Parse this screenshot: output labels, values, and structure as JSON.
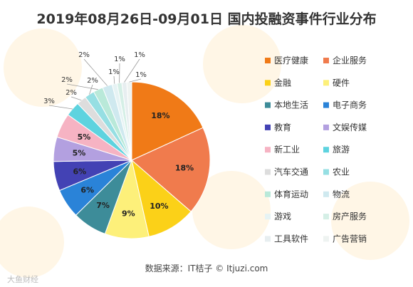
{
  "chart_data": {
    "type": "pie",
    "title": "2019年08月26日-09月01日 国内投融资事件行业分布",
    "slices": [
      {
        "label": "医疗健康",
        "value": 18,
        "display": "18%",
        "color": "#f07a17"
      },
      {
        "label": "企业服务",
        "value": 18,
        "display": "18%",
        "color": "#f07b4d"
      },
      {
        "label": "金融",
        "value": 10,
        "display": "10%",
        "color": "#fbd118"
      },
      {
        "label": "硬件",
        "value": 9,
        "display": "9%",
        "color": "#fdf07a"
      },
      {
        "label": "本地生活",
        "value": 7,
        "display": "7%",
        "color": "#3d8c99"
      },
      {
        "label": "电子商务",
        "value": 6,
        "display": "6%",
        "color": "#2a83d8"
      },
      {
        "label": "教育",
        "value": 6,
        "display": "6%",
        "color": "#4342b4"
      },
      {
        "label": "文娱传媒",
        "value": 5,
        "display": "5%",
        "color": "#b3a0e0"
      },
      {
        "label": "新工业",
        "value": 5,
        "display": "5%",
        "color": "#f6b3c3"
      },
      {
        "label": "旅游",
        "value": 3,
        "display": "3%",
        "color": "#5ed3df"
      },
      {
        "label": "汽车交通",
        "value": 2,
        "display": "2%",
        "color": "#dddddd"
      },
      {
        "label": "农业",
        "value": 2,
        "display": "2%",
        "color": "#96dfe3"
      },
      {
        "label": "体育运动",
        "value": 2,
        "display": "2%",
        "color": "#b9e9d9"
      },
      {
        "label": "物流",
        "value": 2,
        "display": "2%",
        "color": "#cfe9ef"
      },
      {
        "label": "游戏",
        "value": 1,
        "display": "1%",
        "color": "#e6f3f4"
      },
      {
        "label": "房产服务",
        "value": 1,
        "display": "1%",
        "color": "#d5efe6"
      },
      {
        "label": "工具软件",
        "value": 1,
        "display": "1%",
        "color": "#e7eef0"
      },
      {
        "label": "广告营销",
        "value": 1,
        "display": "1%",
        "color": "#eef3f1"
      }
    ],
    "legend_position": "right"
  },
  "source": "数据来源：IT桔子  ©  Itjuzi.com",
  "watermark": "大鱼财经"
}
